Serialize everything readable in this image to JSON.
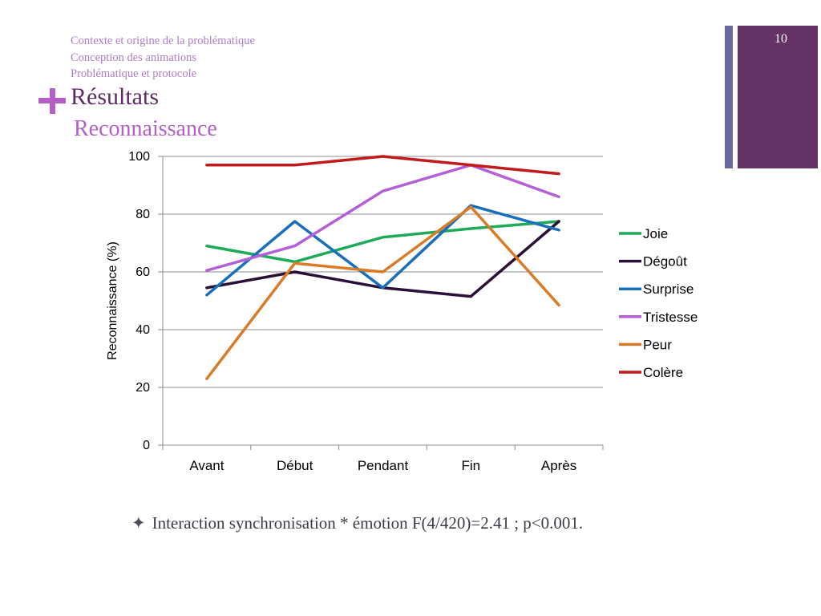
{
  "slide": {
    "page_number": "10",
    "nav_items": [
      "Contexte et origine de la problématique",
      "Conception des animations",
      "Problématique et protocole"
    ],
    "title": "Résultats",
    "subtitle": "Reconnaissance",
    "footnote_icon": "four-pointed-star-icon",
    "footnote_text": "Interaction synchronisation * émotion F(4/420)=2.41 ; p<0.001.",
    "colors": {
      "nav_text": "#b07cc6",
      "title_text": "#5e2a63",
      "accent_plus": "#b45fc6",
      "sidebar_bar": "#643264",
      "sidebar_thin_bar": "#6c6a9c"
    }
  },
  "chart_data": {
    "type": "line",
    "categories": [
      "Avant",
      "Début",
      "Pendant",
      "Fin",
      "Après"
    ],
    "ylabel": "Reconnaissance (%)",
    "xlabel": "",
    "title": "",
    "ylim": [
      0,
      100
    ],
    "yticks": [
      0,
      20,
      40,
      60,
      80,
      100
    ],
    "grid": "horizontal",
    "legend_position": "right",
    "series": [
      {
        "name": "Joie",
        "color": "#1faa59",
        "values": [
          69,
          63.5,
          72,
          75,
          77.5
        ]
      },
      {
        "name": "Dégoût",
        "color": "#2b0f38",
        "values": [
          54.5,
          60,
          54.5,
          51.5,
          77.5
        ]
      },
      {
        "name": "Surprise",
        "color": "#1a6fbb",
        "values": [
          52,
          77.5,
          54.5,
          83,
          74.5
        ]
      },
      {
        "name": "Tristesse",
        "color": "#b45fd6",
        "values": [
          60.5,
          69,
          88,
          97,
          86
        ]
      },
      {
        "name": "Peur",
        "color": "#d97b27",
        "values": [
          23,
          63,
          60,
          82.5,
          48.5
        ]
      },
      {
        "name": "Colère",
        "color": "#c01a1a",
        "values": [
          97,
          97,
          100,
          97,
          94
        ]
      }
    ]
  }
}
